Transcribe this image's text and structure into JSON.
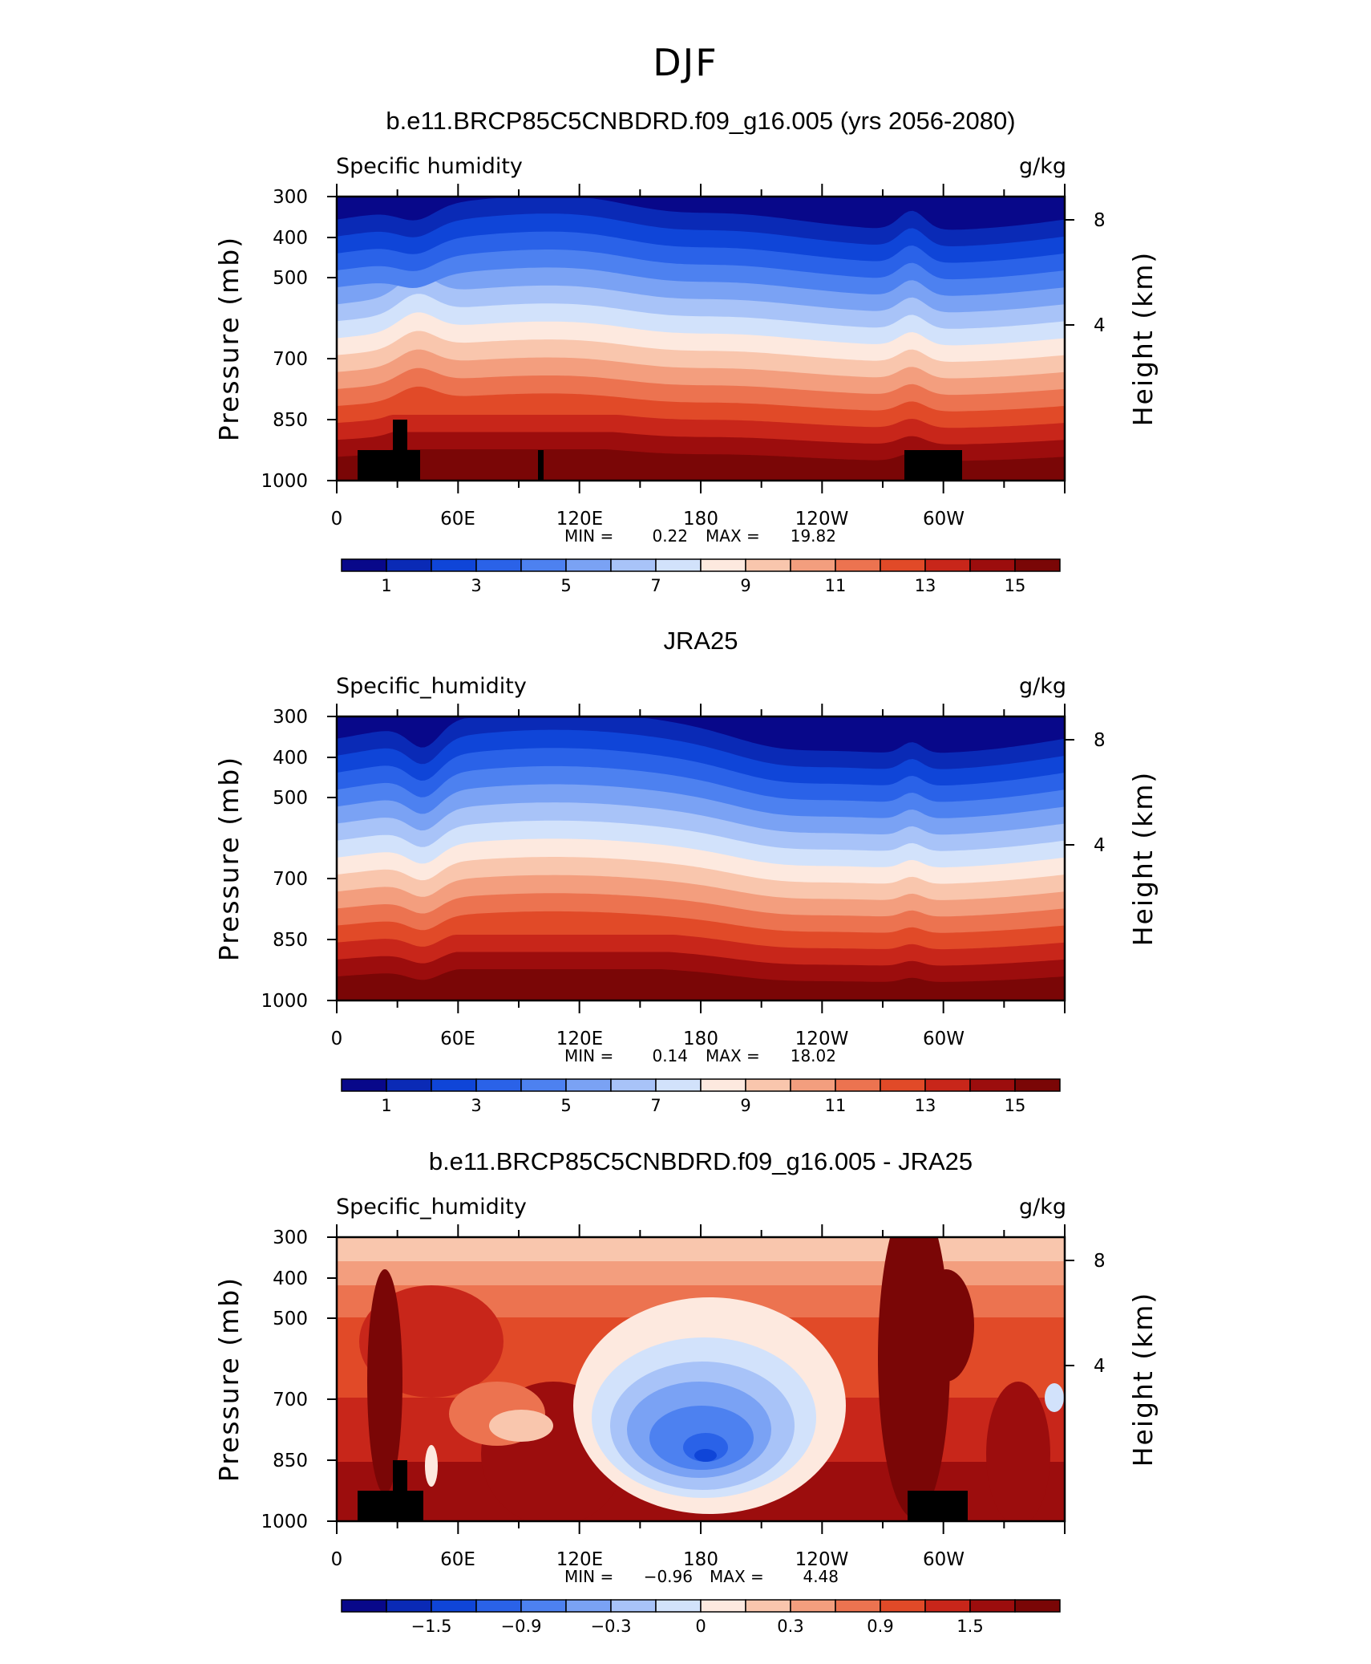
{
  "figure": {
    "title": "DJF"
  },
  "palette": [
    "#08088a",
    "#0a2ab6",
    "#0f45d8",
    "#2a62e8",
    "#4d81f0",
    "#7aa2f4",
    "#a8c3f8",
    "#d2e2fb",
    "#fde9df",
    "#f9c6ad",
    "#f39e7e",
    "#ec7350",
    "#e14a28",
    "#c8261a",
    "#9c0d0d",
    "#7a0606"
  ],
  "chart_data": [
    {
      "id": "model",
      "type": "heatmap",
      "title": "b.e11.BRCP85C5CNBDRD.f09_g16.005 (yrs 2056-2080)",
      "left_label": "Specific humidity",
      "right_label": "g/kg",
      "ylabel": "Pressure (mb)",
      "ylabel_right": "Height (km)",
      "x_ticks": [
        "0",
        "60E",
        "120E",
        "180",
        "120W",
        "60W"
      ],
      "y_ticks": [
        "300",
        "400",
        "500",
        "700",
        "850",
        "1000"
      ],
      "height_ticks": [
        "8",
        "4"
      ],
      "xlim": [
        0,
        360
      ],
      "ylim": [
        1000,
        300
      ],
      "min_label": "MIN =",
      "min_value": "0.22",
      "max_label": "MAX =",
      "max_value": "19.82",
      "colorbar_labels": [
        "1",
        "3",
        "5",
        "7",
        "9",
        "11",
        "13",
        "15"
      ],
      "field": "specific-humidity-model",
      "terrain": true
    },
    {
      "id": "obs",
      "type": "heatmap",
      "title": "JRA25",
      "left_label": "Specific_humidity",
      "right_label": "g/kg",
      "ylabel": "Pressure (mb)",
      "ylabel_right": "Height (km)",
      "x_ticks": [
        "0",
        "60E",
        "120E",
        "180",
        "120W",
        "60W"
      ],
      "y_ticks": [
        "300",
        "400",
        "500",
        "700",
        "850",
        "1000"
      ],
      "height_ticks": [
        "8",
        "4"
      ],
      "xlim": [
        0,
        360
      ],
      "ylim": [
        1000,
        300
      ],
      "min_label": "MIN =",
      "min_value": "0.14",
      "max_label": "MAX =",
      "max_value": "18.02",
      "colorbar_labels": [
        "1",
        "3",
        "5",
        "7",
        "9",
        "11",
        "13",
        "15"
      ],
      "field": "specific-humidity-obs",
      "terrain": false
    },
    {
      "id": "diff",
      "type": "heatmap",
      "title": "b.e11.BRCP85C5CNBDRD.f09_g16.005 - JRA25",
      "left_label": "Specific_humidity",
      "right_label": "g/kg",
      "ylabel": "Pressure (mb)",
      "ylabel_right": "Height (km)",
      "x_ticks": [
        "0",
        "60E",
        "120E",
        "180",
        "120W",
        "60W"
      ],
      "y_ticks": [
        "300",
        "400",
        "500",
        "700",
        "850",
        "1000"
      ],
      "height_ticks": [
        "8",
        "4"
      ],
      "xlim": [
        0,
        360
      ],
      "ylim": [
        1000,
        300
      ],
      "min_label": "MIN =",
      "min_value": "−0.96",
      "max_label": "MAX =",
      "max_value": "4.48",
      "colorbar_labels": [
        "−1.5",
        "−0.9",
        "−0.3",
        "0",
        "0.3",
        "0.9",
        "1.5"
      ],
      "field": "specific-humidity-difference",
      "terrain": true
    }
  ]
}
